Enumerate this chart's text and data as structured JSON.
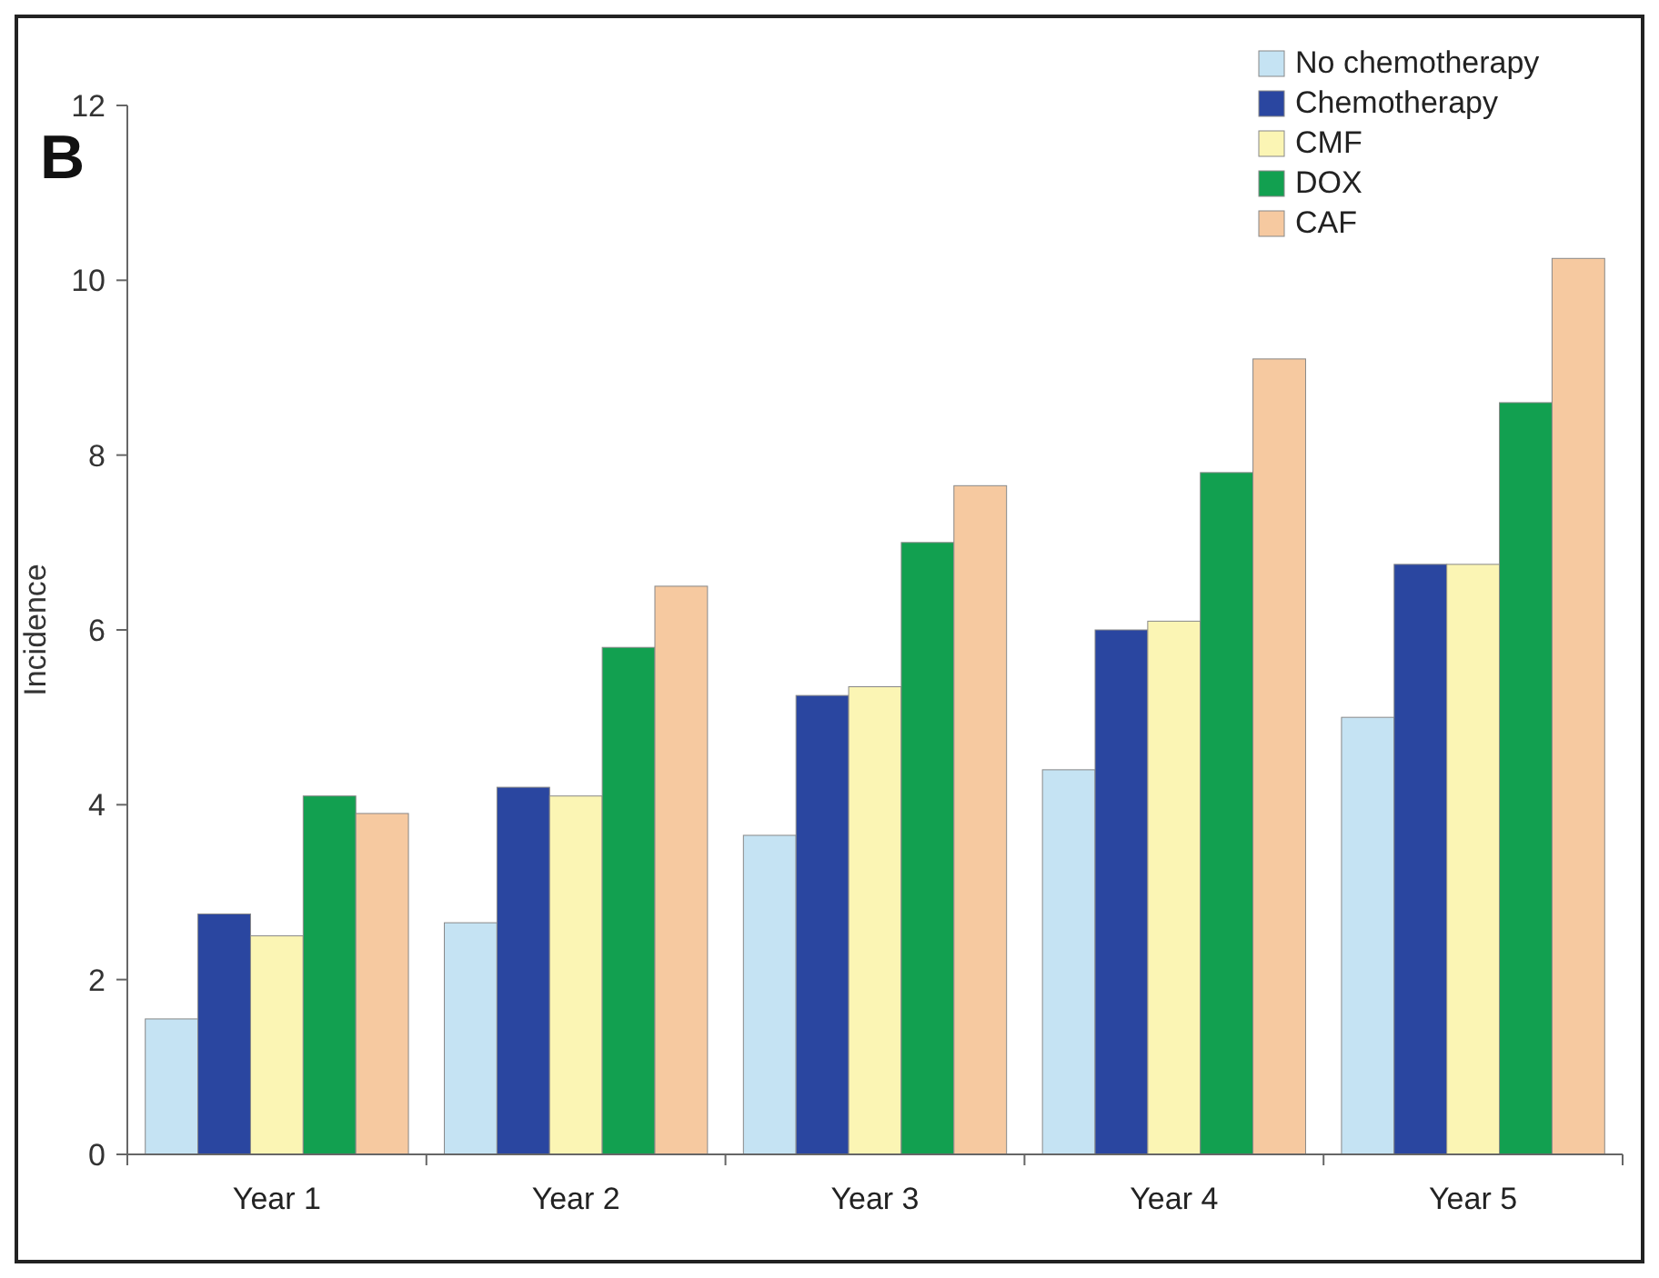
{
  "chart_data": {
    "type": "bar",
    "ylabel": "Incidence",
    "annotations": [
      "B"
    ],
    "categories": [
      "Year 1",
      "Year 2",
      "Year 3",
      "Year 4",
      "Year 5"
    ],
    "series": [
      {
        "name": "No chemotherapy",
        "color": "#c5e3f3",
        "values": [
          1.55,
          2.65,
          3.65,
          4.4,
          5.0
        ]
      },
      {
        "name": "Chemotherapy",
        "color": "#2a46a0",
        "values": [
          2.75,
          4.2,
          5.25,
          6.0,
          6.75
        ]
      },
      {
        "name": "CMF",
        "color": "#fbf5b4",
        "values": [
          2.5,
          4.1,
          5.35,
          6.1,
          6.75
        ]
      },
      {
        "name": "DOX",
        "color": "#12a050",
        "values": [
          4.1,
          5.8,
          7.0,
          7.8,
          8.6
        ]
      },
      {
        "name": "CAF",
        "color": "#f6c9a0",
        "values": [
          3.9,
          6.5,
          7.65,
          9.1,
          10.25
        ]
      }
    ],
    "ylim": [
      0,
      12
    ],
    "yticks": [
      0,
      2,
      4,
      6,
      8,
      10,
      12
    ],
    "grid": false,
    "legend": "top right"
  }
}
